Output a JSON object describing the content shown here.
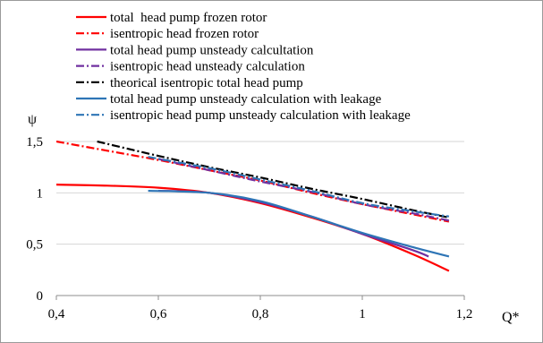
{
  "chart_data": {
    "type": "line",
    "xlabel": "Q*",
    "ylabel": "ψ",
    "xlim": [
      0.4,
      1.2
    ],
    "ylim": [
      0,
      1.5
    ],
    "x_ticks": [
      0.4,
      0.6,
      0.8,
      1.0,
      1.2
    ],
    "x_tick_labels": [
      "0,4",
      "0,6",
      "0,8",
      "1",
      "1,2"
    ],
    "y_ticks": [
      0,
      0.5,
      1,
      1.5
    ],
    "y_tick_labels": [
      "0",
      "0,5",
      "1",
      "1,5"
    ],
    "grid": "horizontal",
    "legend_placement": "top",
    "series": [
      {
        "name": "total  head pump frozen rotor",
        "color": "#ff0000",
        "dash": "solid",
        "x": [
          0.4,
          0.5,
          0.6,
          0.7,
          0.8,
          0.9,
          1.0,
          1.1,
          1.17
        ],
        "y": [
          1.08,
          1.07,
          1.05,
          1.0,
          0.9,
          0.76,
          0.6,
          0.4,
          0.24
        ]
      },
      {
        "name": "isentropic head frozen rotor",
        "color": "#ff0000",
        "dash": "dashdot",
        "x": [
          0.4,
          0.5,
          0.6,
          0.7,
          0.8,
          0.9,
          1.0,
          1.1,
          1.17
        ],
        "y": [
          1.5,
          1.41,
          1.32,
          1.22,
          1.12,
          1.0,
          0.89,
          0.79,
          0.72
        ]
      },
      {
        "name": "total head pump unsteady calcultation",
        "color": "#7030a0",
        "dash": "solid",
        "x": [
          0.6,
          0.7,
          0.8,
          0.9,
          1.0,
          1.1,
          1.13
        ],
        "y": [
          1.02,
          1.0,
          0.91,
          0.77,
          0.6,
          0.44,
          0.38
        ]
      },
      {
        "name": "isentropic head unsteady calculation",
        "color": "#7030a0",
        "dash": "dashdot",
        "x": [
          0.6,
          0.7,
          0.8,
          0.9,
          1.0,
          1.1,
          1.17
        ],
        "y": [
          1.33,
          1.22,
          1.11,
          1.01,
          0.89,
          0.8,
          0.73
        ]
      },
      {
        "name": "theorical isentropic total head pump",
        "color": "#000000",
        "dash": "dashdot",
        "x": [
          0.48,
          0.6,
          0.7,
          0.8,
          0.9,
          1.0,
          1.1,
          1.17
        ],
        "y": [
          1.5,
          1.36,
          1.25,
          1.15,
          1.04,
          0.94,
          0.83,
          0.76
        ]
      },
      {
        "name": "total head pump unsteady calculation with leakage",
        "color": "#2e75b6",
        "dash": "solid",
        "x": [
          0.58,
          0.7,
          0.8,
          0.9,
          1.0,
          1.1,
          1.17
        ],
        "y": [
          1.02,
          1.0,
          0.92,
          0.77,
          0.61,
          0.47,
          0.38
        ]
      },
      {
        "name": "isentropic head pump unsteady calculation with leakage",
        "color": "#2e75b6",
        "dash": "dashdot",
        "x": [
          0.58,
          0.7,
          0.8,
          0.9,
          1.0,
          1.1,
          1.17
        ],
        "y": [
          1.35,
          1.24,
          1.13,
          1.02,
          0.9,
          0.82,
          0.77
        ]
      }
    ]
  }
}
